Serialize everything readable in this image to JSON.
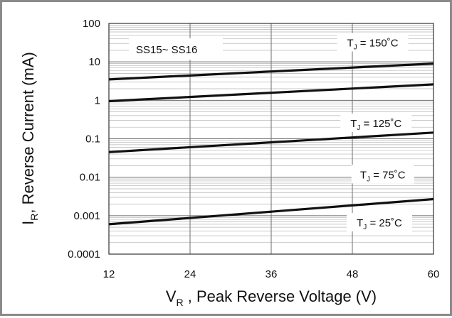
{
  "chart_data": {
    "type": "line",
    "xlabel": "V_R , Peak Reverse Voltage (V)",
    "xlabel_main": "V",
    "xlabel_sub": "R",
    "xlabel_rest": " , Peak Reverse Voltage (V)",
    "ylabel": "I_R, Reverse Current (mA)",
    "ylabel_main": "I",
    "ylabel_sub": "R",
    "ylabel_rest": ", Reverse Current (mA)",
    "xlim": [
      12,
      60
    ],
    "ylim": [
      0.0001,
      100
    ],
    "yscale": "log",
    "grid": true,
    "x_ticks": [
      "12",
      "24",
      "36",
      "48",
      "60"
    ],
    "y_ticks": [
      "100",
      "10",
      "1",
      "0.1",
      "0.01",
      "0.001",
      "0.0001"
    ],
    "annotation": "SS15~ SS16",
    "series": [
      {
        "label_main": "T",
        "label_sub": "J",
        "label_rest": " = 150˚C",
        "x": [
          12,
          60
        ],
        "y": [
          3.5,
          9.0
        ]
      },
      {
        "label_main": "T",
        "label_sub": "J",
        "label_rest": " = 125˚C",
        "x": [
          12,
          60
        ],
        "y": [
          0.95,
          2.6
        ]
      },
      {
        "label_main": "T",
        "label_sub": "J",
        "label_rest": " = 75˚C",
        "x": [
          12,
          60
        ],
        "y": [
          0.045,
          0.145
        ]
      },
      {
        "label_main": "T",
        "label_sub": "J",
        "label_rest": " = 25˚C",
        "x": [
          12,
          60
        ],
        "y": [
          0.0006,
          0.0027
        ]
      }
    ]
  }
}
